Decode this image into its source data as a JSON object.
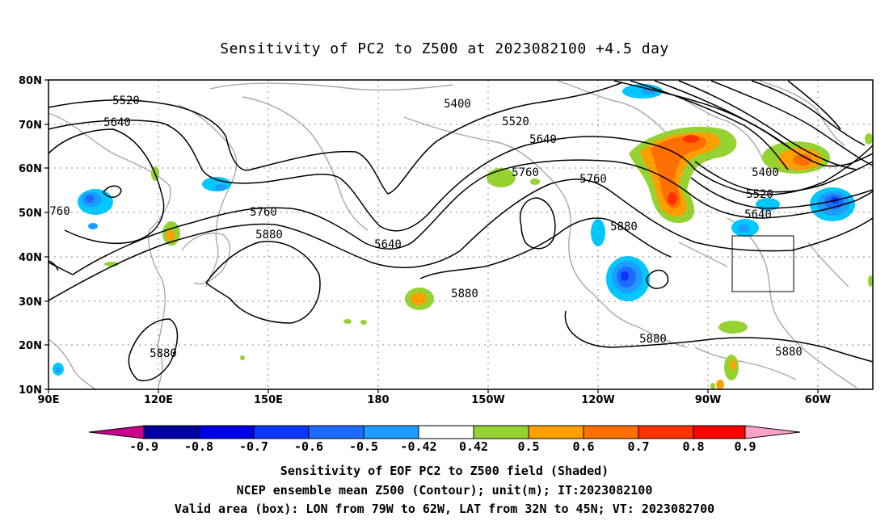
{
  "title": "Sensitivity of PC2 to Z500 at 2023082100 +4.5 day",
  "map": {
    "lat_labels": [
      "80N",
      "70N",
      "60N",
      "50N",
      "40N",
      "30N",
      "20N",
      "10N"
    ],
    "lon_labels": [
      "90E",
      "120E",
      "150E",
      "180",
      "150W",
      "120W",
      "90W",
      "60W"
    ],
    "contour_labels": [
      {
        "text": "5520"
      },
      {
        "text": "5640"
      },
      {
        "text": "5400"
      },
      {
        "text": "5520"
      },
      {
        "text": "5640"
      },
      {
        "text": "5760"
      },
      {
        "text": "5760"
      },
      {
        "text": "5400"
      },
      {
        "text": "5520"
      },
      {
        "text": "5640"
      },
      {
        "text": "760"
      },
      {
        "text": "5760"
      },
      {
        "text": "5880"
      },
      {
        "text": "5640"
      },
      {
        "text": "5880"
      },
      {
        "text": "5880"
      },
      {
        "text": "5880"
      },
      {
        "text": "5880"
      },
      {
        "text": "5880"
      }
    ],
    "valid_box": {
      "lon_from": "79W",
      "lon_to": "62W",
      "lat_from": "32N",
      "lat_to": "45N"
    }
  },
  "colorbar": {
    "labels": [
      "-0.9",
      "-0.8",
      "-0.7",
      "-0.6",
      "-0.5",
      "-0.42",
      "0.42",
      "0.5",
      "0.6",
      "0.7",
      "0.8",
      "0.9"
    ],
    "colors": [
      "#0000a0",
      "#0000e6",
      "#0a36ff",
      "#1e6cff",
      "#1e9bff",
      "#00c8ff",
      "#ffffff",
      "#96d232",
      "#ffa000",
      "#ff6e00",
      "#ff3200",
      "#ff0000"
    ],
    "left_triangle_color": "#c8008c",
    "right_triangle_color": "#ffa0c8"
  },
  "captions": [
    "Sensitivity of EOF PC2 to Z500 field (Shaded)",
    "NCEP ensemble mean Z500 (Contour); unit(m); IT:2023082100",
    "Valid area (box): LON from 79W to 62W, LAT from 32N to 45N; VT: 2023082700"
  ]
}
